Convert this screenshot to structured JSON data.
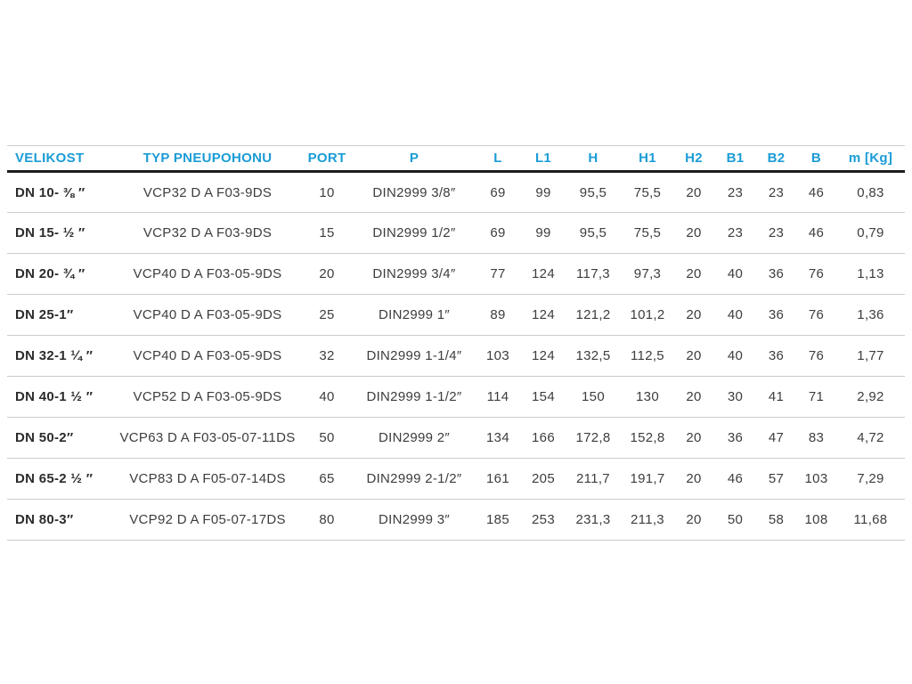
{
  "table": {
    "accent_color": "#1b9cd6",
    "text_color": "#3d3d3d",
    "columns": [
      {
        "key": "velikost",
        "label": "VELIKOST"
      },
      {
        "key": "typ",
        "label": "TYP PNEUPOHONU"
      },
      {
        "key": "port",
        "label": "PORT"
      },
      {
        "key": "p",
        "label": "P"
      },
      {
        "key": "l",
        "label": "L"
      },
      {
        "key": "l1",
        "label": "L1"
      },
      {
        "key": "h",
        "label": "H"
      },
      {
        "key": "h1",
        "label": "H1"
      },
      {
        "key": "h2",
        "label": "H2"
      },
      {
        "key": "b1",
        "label": "B1"
      },
      {
        "key": "b2",
        "label": "B2"
      },
      {
        "key": "b",
        "label": "B"
      },
      {
        "key": "m",
        "label": "m [Kg]"
      }
    ],
    "rows": [
      {
        "velikost": "DN 10- ⅜ ″",
        "typ": "VCP32 D A F03-9DS",
        "port": "10",
        "p": "DIN2999 3/8″",
        "l": "69",
        "l1": "99",
        "h": "95,5",
        "h1": "75,5",
        "h2": "20",
        "b1": "23",
        "b2": "23",
        "b": "46",
        "m": "0,83"
      },
      {
        "velikost": "DN 15- ½ ″",
        "typ": "VCP32 D A F03-9DS",
        "port": "15",
        "p": "DIN2999 1/2″",
        "l": "69",
        "l1": "99",
        "h": "95,5",
        "h1": "75,5",
        "h2": "20",
        "b1": "23",
        "b2": "23",
        "b": "46",
        "m": "0,79"
      },
      {
        "velikost": "DN 20- ¾ ″",
        "typ": "VCP40 D A F03-05-9DS",
        "port": "20",
        "p": "DIN2999 3/4″",
        "l": "77",
        "l1": "124",
        "h": "117,3",
        "h1": "97,3",
        "h2": "20",
        "b1": "40",
        "b2": "36",
        "b": "76",
        "m": "1,13"
      },
      {
        "velikost": "DN 25-1″",
        "typ": "VCP40 D A F03-05-9DS",
        "port": "25",
        "p": "DIN2999 1″",
        "l": "89",
        "l1": "124",
        "h": "121,2",
        "h1": "101,2",
        "h2": "20",
        "b1": "40",
        "b2": "36",
        "b": "76",
        "m": "1,36"
      },
      {
        "velikost": "DN 32-1 ¼ ″",
        "typ": "VCP40 D A F03-05-9DS",
        "port": "32",
        "p": "DIN2999 1-1/4″",
        "l": "103",
        "l1": "124",
        "h": "132,5",
        "h1": "112,5",
        "h2": "20",
        "b1": "40",
        "b2": "36",
        "b": "76",
        "m": "1,77"
      },
      {
        "velikost": "DN 40-1 ½ ″",
        "typ": "VCP52 D A F03-05-9DS",
        "port": "40",
        "p": "DIN2999 1-1/2″",
        "l": "114",
        "l1": "154",
        "h": "150",
        "h1": "130",
        "h2": "20",
        "b1": "30",
        "b2": "41",
        "b": "71",
        "m": "2,92"
      },
      {
        "velikost": "DN 50-2″",
        "typ": "VCP63 D A F03-05-07-11DS",
        "port": "50",
        "p": "DIN2999 2″",
        "l": "134",
        "l1": "166",
        "h": "172,8",
        "h1": "152,8",
        "h2": "20",
        "b1": "36",
        "b2": "47",
        "b": "83",
        "m": "4,72"
      },
      {
        "velikost": "DN 65-2 ½ ″",
        "typ": "VCP83 D A F05-07-14DS",
        "port": "65",
        "p": "DIN2999 2-1/2″",
        "l": "161",
        "l1": "205",
        "h": "211,7",
        "h1": "191,7",
        "h2": "20",
        "b1": "46",
        "b2": "57",
        "b": "103",
        "m": "7,29"
      },
      {
        "velikost": "DN 80-3″",
        "typ": "VCP92 D A F05-07-17DS",
        "port": "80",
        "p": "DIN2999 3″",
        "l": "185",
        "l1": "253",
        "h": "231,3",
        "h1": "211,3",
        "h2": "20",
        "b1": "50",
        "b2": "58",
        "b": "108",
        "m": "11,68"
      }
    ]
  }
}
